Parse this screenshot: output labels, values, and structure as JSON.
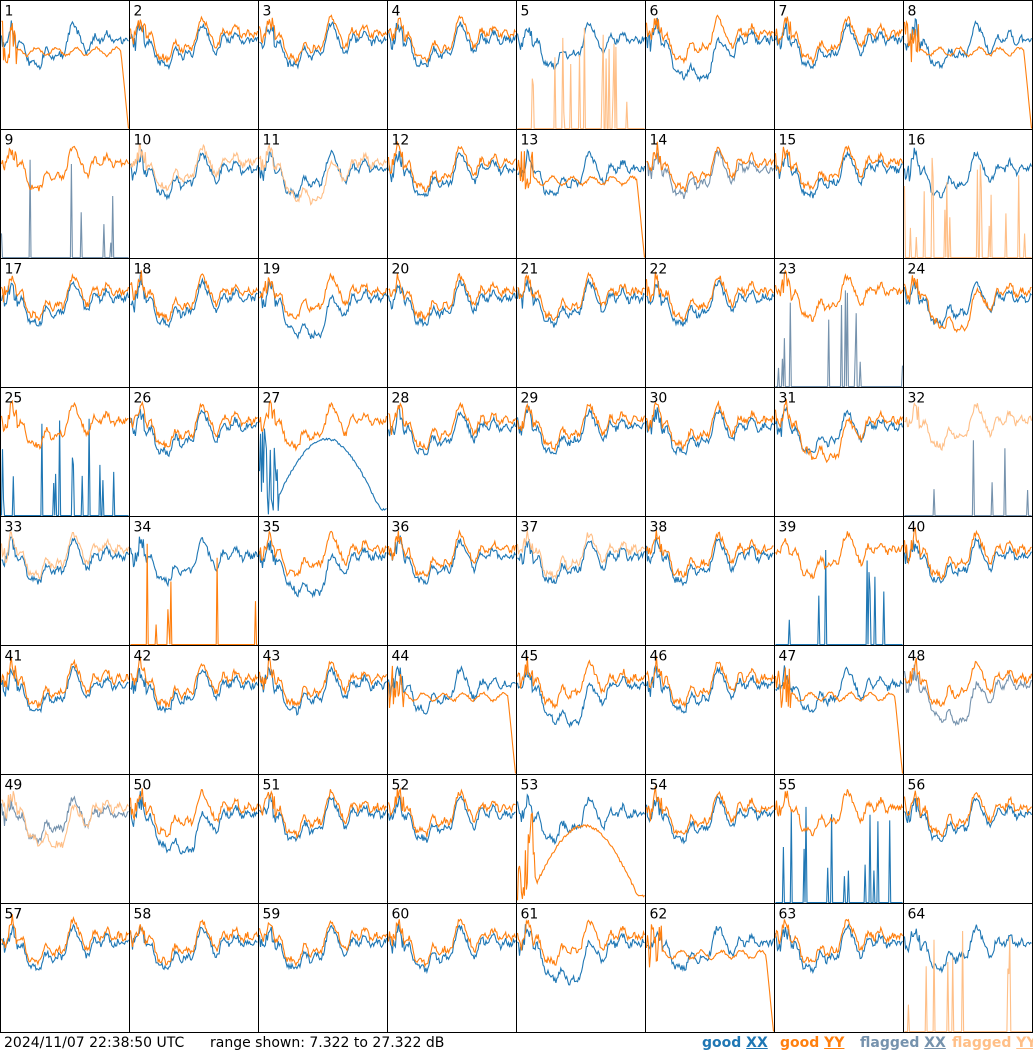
{
  "timestamp": "2024/11/07 22:38:50 UTC",
  "range_text": "range shown: 7.322 to 27.322 dB",
  "legend": [
    {
      "key": "good_xx",
      "status": "good",
      "label": "XX",
      "prefix": "good",
      "color": "#1f77b4"
    },
    {
      "key": "good_yy",
      "status": "good",
      "label": "YY",
      "prefix": "good",
      "color": "#ff7f0e"
    },
    {
      "key": "flagged_xx",
      "status": "flagged",
      "label": "XX",
      "prefix": "flagged",
      "color": "#7592ad"
    },
    {
      "key": "flagged_yy",
      "status": "flagged",
      "label": "YY",
      "prefix": "flagged",
      "color": "#ffbf87"
    }
  ],
  "chart_data": {
    "type": "line",
    "panel_count": 64,
    "grid_rows": 8,
    "grid_cols": 8,
    "ylim_db": [
      7.322,
      27.322
    ],
    "series_names": [
      "XX",
      "YY"
    ],
    "panels": [
      {
        "id": "1",
        "xx": {
          "status": "good",
          "shape": "normal"
        },
        "yy": {
          "status": "good",
          "shape": "drop"
        }
      },
      {
        "id": "2",
        "xx": {
          "status": "good",
          "shape": "normal"
        },
        "yy": {
          "status": "good",
          "shape": "normal"
        }
      },
      {
        "id": "3",
        "xx": {
          "status": "good",
          "shape": "normal"
        },
        "yy": {
          "status": "good",
          "shape": "normal"
        }
      },
      {
        "id": "4",
        "xx": {
          "status": "good",
          "shape": "normal"
        },
        "yy": {
          "status": "good",
          "shape": "normal"
        }
      },
      {
        "id": "5",
        "xx": {
          "status": "good",
          "shape": "normal"
        },
        "yy": {
          "status": "flagged",
          "shape": "spikes"
        }
      },
      {
        "id": "6",
        "xx": {
          "status": "good",
          "shape": "dip"
        },
        "yy": {
          "status": "good",
          "shape": "normal"
        }
      },
      {
        "id": "7",
        "xx": {
          "status": "good",
          "shape": "normal"
        },
        "yy": {
          "status": "good",
          "shape": "normal"
        }
      },
      {
        "id": "8",
        "xx": {
          "status": "good",
          "shape": "normal"
        },
        "yy": {
          "status": "good",
          "shape": "drop"
        }
      },
      {
        "id": "9",
        "xx": {
          "status": "flagged",
          "shape": "spikes"
        },
        "yy": {
          "status": "good",
          "shape": "normal"
        }
      },
      {
        "id": "10",
        "xx": {
          "status": "good",
          "shape": "normal"
        },
        "yy": {
          "status": "flagged",
          "shape": "normal"
        }
      },
      {
        "id": "11",
        "xx": {
          "status": "good",
          "shape": "normal"
        },
        "yy": {
          "status": "flagged",
          "shape": "dip"
        }
      },
      {
        "id": "12",
        "xx": {
          "status": "good",
          "shape": "normal"
        },
        "yy": {
          "status": "good",
          "shape": "normal"
        }
      },
      {
        "id": "13",
        "xx": {
          "status": "good",
          "shape": "normal"
        },
        "yy": {
          "status": "good",
          "shape": "drop"
        }
      },
      {
        "id": "14",
        "xx": {
          "status": "flagged",
          "shape": "normal"
        },
        "yy": {
          "status": "good",
          "shape": "normal"
        }
      },
      {
        "id": "15",
        "xx": {
          "status": "good",
          "shape": "normal"
        },
        "yy": {
          "status": "good",
          "shape": "normal"
        }
      },
      {
        "id": "16",
        "xx": {
          "status": "good",
          "shape": "normal"
        },
        "yy": {
          "status": "flagged",
          "shape": "spikes"
        }
      },
      {
        "id": "17",
        "xx": {
          "status": "good",
          "shape": "normal"
        },
        "yy": {
          "status": "good",
          "shape": "normal"
        }
      },
      {
        "id": "18",
        "xx": {
          "status": "good",
          "shape": "normal"
        },
        "yy": {
          "status": "good",
          "shape": "normal"
        }
      },
      {
        "id": "19",
        "xx": {
          "status": "good",
          "shape": "dip"
        },
        "yy": {
          "status": "good",
          "shape": "normal"
        }
      },
      {
        "id": "20",
        "xx": {
          "status": "good",
          "shape": "normal"
        },
        "yy": {
          "status": "good",
          "shape": "normal"
        }
      },
      {
        "id": "21",
        "xx": {
          "status": "good",
          "shape": "normal"
        },
        "yy": {
          "status": "good",
          "shape": "normal"
        }
      },
      {
        "id": "22",
        "xx": {
          "status": "good",
          "shape": "normal"
        },
        "yy": {
          "status": "good",
          "shape": "normal"
        }
      },
      {
        "id": "23",
        "xx": {
          "status": "flagged",
          "shape": "spikes"
        },
        "yy": {
          "status": "good",
          "shape": "normal"
        }
      },
      {
        "id": "24",
        "xx": {
          "status": "good",
          "shape": "normal"
        },
        "yy": {
          "status": "good",
          "shape": "dip"
        }
      },
      {
        "id": "25",
        "xx": {
          "status": "good",
          "shape": "spikes"
        },
        "yy": {
          "status": "good",
          "shape": "normal"
        }
      },
      {
        "id": "26",
        "xx": {
          "status": "good",
          "shape": "normal"
        },
        "yy": {
          "status": "good",
          "shape": "normal"
        }
      },
      {
        "id": "27",
        "xx": {
          "status": "good",
          "shape": "hump"
        },
        "yy": {
          "status": "good",
          "shape": "normal"
        }
      },
      {
        "id": "28",
        "xx": {
          "status": "good",
          "shape": "normal"
        },
        "yy": {
          "status": "good",
          "shape": "normal"
        }
      },
      {
        "id": "29",
        "xx": {
          "status": "good",
          "shape": "normal"
        },
        "yy": {
          "status": "good",
          "shape": "normal"
        }
      },
      {
        "id": "30",
        "xx": {
          "status": "good",
          "shape": "normal"
        },
        "yy": {
          "status": "good",
          "shape": "normal"
        }
      },
      {
        "id": "31",
        "xx": {
          "status": "good",
          "shape": "normal"
        },
        "yy": {
          "status": "good",
          "shape": "dip"
        }
      },
      {
        "id": "32",
        "xx": {
          "status": "flagged",
          "shape": "spikes"
        },
        "yy": {
          "status": "flagged",
          "shape": "normal"
        }
      },
      {
        "id": "33",
        "xx": {
          "status": "good",
          "shape": "normal"
        },
        "yy": {
          "status": "flagged",
          "shape": "normal"
        }
      },
      {
        "id": "34",
        "xx": {
          "status": "good",
          "shape": "normal"
        },
        "yy": {
          "status": "good",
          "shape": "spikes"
        }
      },
      {
        "id": "35",
        "xx": {
          "status": "good",
          "shape": "dip"
        },
        "yy": {
          "status": "good",
          "shape": "normal"
        }
      },
      {
        "id": "36",
        "xx": {
          "status": "good",
          "shape": "normal"
        },
        "yy": {
          "status": "good",
          "shape": "normal"
        }
      },
      {
        "id": "37",
        "xx": {
          "status": "good",
          "shape": "normal"
        },
        "yy": {
          "status": "flagged",
          "shape": "normal"
        }
      },
      {
        "id": "38",
        "xx": {
          "status": "good",
          "shape": "normal"
        },
        "yy": {
          "status": "good",
          "shape": "normal"
        }
      },
      {
        "id": "39",
        "xx": {
          "status": "good",
          "shape": "spikes"
        },
        "yy": {
          "status": "good",
          "shape": "normal"
        }
      },
      {
        "id": "40",
        "xx": {
          "status": "good",
          "shape": "normal"
        },
        "yy": {
          "status": "good",
          "shape": "normal"
        }
      },
      {
        "id": "41",
        "xx": {
          "status": "good",
          "shape": "normal"
        },
        "yy": {
          "status": "good",
          "shape": "normal"
        }
      },
      {
        "id": "42",
        "xx": {
          "status": "good",
          "shape": "normal"
        },
        "yy": {
          "status": "good",
          "shape": "normal"
        }
      },
      {
        "id": "43",
        "xx": {
          "status": "good",
          "shape": "normal"
        },
        "yy": {
          "status": "good",
          "shape": "normal"
        }
      },
      {
        "id": "44",
        "xx": {
          "status": "good",
          "shape": "normal"
        },
        "yy": {
          "status": "good",
          "shape": "drop"
        }
      },
      {
        "id": "45",
        "xx": {
          "status": "good",
          "shape": "dip"
        },
        "yy": {
          "status": "good",
          "shape": "normal"
        }
      },
      {
        "id": "46",
        "xx": {
          "status": "good",
          "shape": "normal"
        },
        "yy": {
          "status": "good",
          "shape": "normal"
        }
      },
      {
        "id": "47",
        "xx": {
          "status": "good",
          "shape": "normal"
        },
        "yy": {
          "status": "good",
          "shape": "drop"
        }
      },
      {
        "id": "48",
        "xx": {
          "status": "flagged",
          "shape": "dip"
        },
        "yy": {
          "status": "good",
          "shape": "normal"
        }
      },
      {
        "id": "49",
        "xx": {
          "status": "flagged",
          "shape": "normal"
        },
        "yy": {
          "status": "flagged",
          "shape": "dip"
        }
      },
      {
        "id": "50",
        "xx": {
          "status": "good",
          "shape": "dip"
        },
        "yy": {
          "status": "good",
          "shape": "normal"
        }
      },
      {
        "id": "51",
        "xx": {
          "status": "good",
          "shape": "normal"
        },
        "yy": {
          "status": "good",
          "shape": "normal"
        }
      },
      {
        "id": "52",
        "xx": {
          "status": "good",
          "shape": "normal"
        },
        "yy": {
          "status": "good",
          "shape": "normal"
        }
      },
      {
        "id": "53",
        "xx": {
          "status": "good",
          "shape": "normal"
        },
        "yy": {
          "status": "good",
          "shape": "hump"
        }
      },
      {
        "id": "54",
        "xx": {
          "status": "good",
          "shape": "normal"
        },
        "yy": {
          "status": "good",
          "shape": "normal"
        }
      },
      {
        "id": "55",
        "xx": {
          "status": "good",
          "shape": "spikes"
        },
        "yy": {
          "status": "good",
          "shape": "normal"
        }
      },
      {
        "id": "56",
        "xx": {
          "status": "good",
          "shape": "normal"
        },
        "yy": {
          "status": "good",
          "shape": "normal"
        }
      },
      {
        "id": "57",
        "xx": {
          "status": "good",
          "shape": "normal"
        },
        "yy": {
          "status": "good",
          "shape": "normal"
        }
      },
      {
        "id": "58",
        "xx": {
          "status": "good",
          "shape": "normal"
        },
        "yy": {
          "status": "good",
          "shape": "normal"
        }
      },
      {
        "id": "59",
        "xx": {
          "status": "good",
          "shape": "normal"
        },
        "yy": {
          "status": "good",
          "shape": "normal"
        }
      },
      {
        "id": "60",
        "xx": {
          "status": "good",
          "shape": "normal"
        },
        "yy": {
          "status": "good",
          "shape": "normal"
        }
      },
      {
        "id": "61",
        "xx": {
          "status": "good",
          "shape": "dip"
        },
        "yy": {
          "status": "good",
          "shape": "normal"
        }
      },
      {
        "id": "62",
        "xx": {
          "status": "good",
          "shape": "normal"
        },
        "yy": {
          "status": "good",
          "shape": "drop"
        }
      },
      {
        "id": "63",
        "xx": {
          "status": "good",
          "shape": "normal"
        },
        "yy": {
          "status": "good",
          "shape": "normal"
        }
      },
      {
        "id": "64",
        "xx": {
          "status": "good",
          "shape": "normal"
        },
        "yy": {
          "status": "flagged",
          "shape": "spikes"
        }
      }
    ]
  }
}
